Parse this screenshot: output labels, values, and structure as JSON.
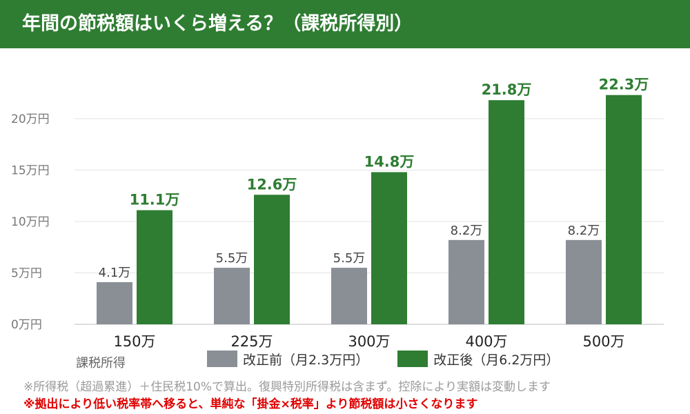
{
  "title": "年間の節税額はいくら増える？（課税所得別）",
  "chart_data": {
    "type": "bar",
    "categories": [
      "150万",
      "225万",
      "300万",
      "400万",
      "500万"
    ],
    "series": [
      {
        "name": "改正前（月2.3万円）",
        "color": "#8a8f96",
        "values": [
          4.1,
          5.5,
          5.5,
          8.2,
          8.2
        ],
        "labels": [
          "4.1万",
          "5.5万",
          "5.5万",
          "8.2万",
          "8.2万"
        ]
      },
      {
        "name": "改正後（月6.2万円）",
        "color": "#2e7d32",
        "values": [
          11.1,
          12.6,
          14.8,
          21.8,
          22.3
        ],
        "labels": [
          "11.1万",
          "12.6万",
          "14.8万",
          "21.8万",
          "22.3万"
        ]
      }
    ],
    "ylim": [
      0,
      20
    ],
    "yticks": [
      0,
      5,
      10,
      15,
      20
    ],
    "ytick_labels": [
      "0万円",
      "5万円",
      "10万円",
      "15万円",
      "20万円"
    ],
    "xlabel": "課税所得",
    "ylabel": "",
    "grid": true,
    "legend": "bottom"
  },
  "notes": [
    "※所得税（超過累進）＋住民税10%で算出。復興特別所得税は含まず。控除により実額は変動します",
    "※拠出により低い税率帯へ移ると、単純な「掛金×税率」より節税額は小さくなります"
  ]
}
